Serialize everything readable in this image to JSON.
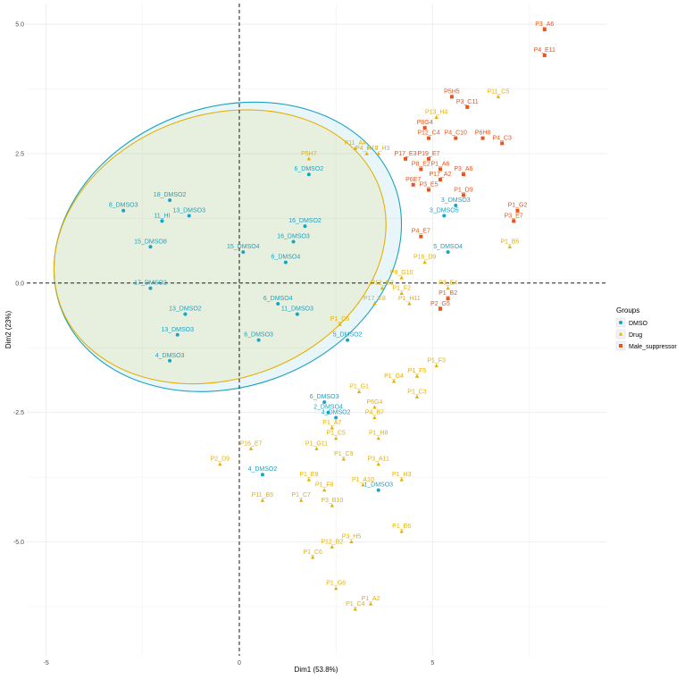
{
  "chart_data": {
    "type": "scatter",
    "xlabel": "Dim1 (53.8%)",
    "ylabel": "Dim2 (23%)",
    "xlim": [
      -5.5,
      9.5
    ],
    "ylim": [
      -7.2,
      5.4
    ],
    "x_ticks": [
      -5,
      0,
      5
    ],
    "y_ticks": [
      -5.0,
      -2.5,
      0.0,
      2.5,
      5.0
    ],
    "x_tick_labels": [
      "-5",
      "0",
      "5"
    ],
    "y_tick_labels": [
      "-5.0",
      "-2.5",
      "0.0",
      "2.5",
      "5.0"
    ],
    "grid": true,
    "legend_title": "Groups",
    "legend_position": "right",
    "groups": [
      {
        "name": "DMSO",
        "color": "#1aa3c2",
        "shape": "circle"
      },
      {
        "name": "Drug",
        "color": "#e6b000",
        "shape": "triangle"
      },
      {
        "name": "Male_suppressor",
        "color": "#e8541a",
        "shape": "square"
      }
    ],
    "ellipses": [
      {
        "group": "DMSO",
        "cx": -0.3,
        "cy": 0.7,
        "rx": 4.6,
        "ry": 2.7,
        "angle_deg": -20
      },
      {
        "group": "Drug",
        "cx": -0.5,
        "cy": 0.7,
        "rx": 4.4,
        "ry": 2.55,
        "angle_deg": -20
      }
    ],
    "series": [
      {
        "name": "Male_suppressor",
        "points": [
          {
            "x": 7.9,
            "y": 4.9,
            "label": "P3_A6"
          },
          {
            "x": 7.9,
            "y": 4.4,
            "label": "P4_E11"
          },
          {
            "x": 5.5,
            "y": 3.6,
            "label": "P5H5"
          },
          {
            "x": 5.9,
            "y": 3.4,
            "label": "P3_C11"
          },
          {
            "x": 4.8,
            "y": 3.0,
            "label": "P8G4"
          },
          {
            "x": 4.9,
            "y": 2.8,
            "label": "P12_C4"
          },
          {
            "x": 5.6,
            "y": 2.8,
            "label": "P4_C10"
          },
          {
            "x": 6.3,
            "y": 2.8,
            "label": "P6H8"
          },
          {
            "x": 6.8,
            "y": 2.7,
            "label": "P4_C3"
          },
          {
            "x": 4.3,
            "y": 2.4,
            "label": "P17_E3"
          },
          {
            "x": 4.9,
            "y": 2.4,
            "label": "P19_E7"
          },
          {
            "x": 5.2,
            "y": 2.2,
            "label": "P1_A6"
          },
          {
            "x": 4.7,
            "y": 2.2,
            "label": "P8_E2"
          },
          {
            "x": 5.8,
            "y": 2.1,
            "label": "P3_A6"
          },
          {
            "x": 5.2,
            "y": 2.0,
            "label": "P17_A2"
          },
          {
            "x": 4.5,
            "y": 1.9,
            "label": "P6E7"
          },
          {
            "x": 4.9,
            "y": 1.8,
            "label": "P3_E5"
          },
          {
            "x": 5.8,
            "y": 1.7,
            "label": "P1_D9"
          },
          {
            "x": 7.2,
            "y": 1.4,
            "label": "P1_G2"
          },
          {
            "x": 7.1,
            "y": 1.2,
            "label": "P3_E7"
          },
          {
            "x": 4.7,
            "y": 0.9,
            "label": "P4_E7"
          },
          {
            "x": 5.4,
            "y": -0.3,
            "label": "P1_B2"
          },
          {
            "x": 5.2,
            "y": -0.5,
            "label": "P2_G5"
          }
        ]
      },
      {
        "name": "DMSO",
        "points": [
          {
            "x": 1.8,
            "y": 2.1,
            "label": "6_DMSO2"
          },
          {
            "x": -1.8,
            "y": 1.6,
            "label": "18_DMSO2"
          },
          {
            "x": -3.0,
            "y": 1.4,
            "label": "8_DMSO3"
          },
          {
            "x": -1.3,
            "y": 1.3,
            "label": "13_DMSO3"
          },
          {
            "x": -2.0,
            "y": 1.2,
            "label": "11_HI"
          },
          {
            "x": 1.7,
            "y": 1.1,
            "label": "16_DMSO2"
          },
          {
            "x": 1.4,
            "y": 0.8,
            "label": "16_DMSO3"
          },
          {
            "x": -2.3,
            "y": 0.7,
            "label": "15_DMSO8"
          },
          {
            "x": 0.1,
            "y": 0.6,
            "label": "15_DMSO4"
          },
          {
            "x": 1.2,
            "y": 0.4,
            "label": "6_DMSO4"
          },
          {
            "x": 5.6,
            "y": 1.5,
            "label": "3_DMSO3"
          },
          {
            "x": 5.3,
            "y": 1.3,
            "label": "3_DMSO5"
          },
          {
            "x": 5.4,
            "y": 0.6,
            "label": "5_DMSO4"
          },
          {
            "x": -2.3,
            "y": -0.1,
            "label": "17_DMSO2"
          },
          {
            "x": 1.0,
            "y": -0.4,
            "label": "6_DMSO4"
          },
          {
            "x": 1.5,
            "y": -0.6,
            "label": "11_DMSO3"
          },
          {
            "x": -1.4,
            "y": -0.6,
            "label": "13_DMSO2"
          },
          {
            "x": -1.6,
            "y": -1.0,
            "label": "13_DMSO3"
          },
          {
            "x": 0.5,
            "y": -1.1,
            "label": "6_DMSO3"
          },
          {
            "x": 2.8,
            "y": -1.1,
            "label": "5_DMSO2"
          },
          {
            "x": -1.8,
            "y": -1.5,
            "label": "4_DMSO3"
          },
          {
            "x": 2.2,
            "y": -2.3,
            "label": "6_DMSO3"
          },
          {
            "x": 2.3,
            "y": -2.5,
            "label": "2_DMSO4"
          },
          {
            "x": 2.5,
            "y": -2.6,
            "label": "4_DMSO2"
          },
          {
            "x": 0.6,
            "y": -3.7,
            "label": "4_DMSO2"
          },
          {
            "x": 3.6,
            "y": -4.0,
            "label": "1_DMSO3"
          }
        ]
      },
      {
        "name": "Drug",
        "points": [
          {
            "x": 6.7,
            "y": 3.6,
            "label": "P11_C5"
          },
          {
            "x": 5.1,
            "y": 3.2,
            "label": "P13_H4"
          },
          {
            "x": 3.0,
            "y": 2.6,
            "label": "P11_A4"
          },
          {
            "x": 3.3,
            "y": 2.5,
            "label": "P4_H10"
          },
          {
            "x": 3.6,
            "y": 2.5,
            "label": "P17_H3"
          },
          {
            "x": 1.8,
            "y": 2.4,
            "label": "P5H7"
          },
          {
            "x": 7.0,
            "y": 0.7,
            "label": "P1_B5"
          },
          {
            "x": 5.4,
            "y": -0.1,
            "label": "P3_E4"
          },
          {
            "x": 4.8,
            "y": 0.4,
            "label": "P16_D9"
          },
          {
            "x": 4.2,
            "y": 0.1,
            "label": "P8_G10"
          },
          {
            "x": 3.7,
            "y": -0.1,
            "label": "P12_G2"
          },
          {
            "x": 4.2,
            "y": -0.2,
            "label": "P1_F2"
          },
          {
            "x": 4.4,
            "y": -0.4,
            "label": "P1_H11"
          },
          {
            "x": 3.5,
            "y": -0.4,
            "label": "P17_E8"
          },
          {
            "x": 2.6,
            "y": -0.8,
            "label": "P1_C6"
          },
          {
            "x": 5.1,
            "y": -1.6,
            "label": "P1_F3"
          },
          {
            "x": 4.6,
            "y": -1.8,
            "label": "P1_F5"
          },
          {
            "x": 4.0,
            "y": -1.9,
            "label": "P1_G4"
          },
          {
            "x": 4.6,
            "y": -2.2,
            "label": "P1_C3"
          },
          {
            "x": 3.1,
            "y": -2.1,
            "label": "P1_G1"
          },
          {
            "x": 3.5,
            "y": -2.4,
            "label": "P6G4"
          },
          {
            "x": 3.5,
            "y": -2.6,
            "label": "P4_B7"
          },
          {
            "x": 2.4,
            "y": -2.8,
            "label": "P1_A7"
          },
          {
            "x": 3.6,
            "y": -3.0,
            "label": "P1_H8"
          },
          {
            "x": 2.5,
            "y": -3.0,
            "label": "P1_C5"
          },
          {
            "x": 2.0,
            "y": -3.2,
            "label": "P1_G11"
          },
          {
            "x": 2.7,
            "y": -3.4,
            "label": "P1_C9"
          },
          {
            "x": 3.6,
            "y": -3.5,
            "label": "P3_A11"
          },
          {
            "x": 4.2,
            "y": -3.8,
            "label": "P1_H3"
          },
          {
            "x": 3.2,
            "y": -3.9,
            "label": "P1_A10"
          },
          {
            "x": 1.8,
            "y": -3.8,
            "label": "P1_E9"
          },
          {
            "x": 2.2,
            "y": -4.0,
            "label": "P1_F8"
          },
          {
            "x": 0.6,
            "y": -4.2,
            "label": "P11_B5"
          },
          {
            "x": 1.6,
            "y": -4.2,
            "label": "P1_C7"
          },
          {
            "x": 2.4,
            "y": -4.3,
            "label": "P3_B10"
          },
          {
            "x": -0.5,
            "y": -3.5,
            "label": "P2_D9"
          },
          {
            "x": 0.3,
            "y": -3.2,
            "label": "P16_E7"
          },
          {
            "x": 4.2,
            "y": -4.8,
            "label": "P1_E6"
          },
          {
            "x": 2.9,
            "y": -5.0,
            "label": "P3_H5"
          },
          {
            "x": 2.4,
            "y": -5.1,
            "label": "P12_B2"
          },
          {
            "x": 1.9,
            "y": -5.3,
            "label": "P1_C6"
          },
          {
            "x": 2.5,
            "y": -5.9,
            "label": "P1_G6"
          },
          {
            "x": 3.4,
            "y": -6.2,
            "label": "P1_A2"
          },
          {
            "x": 3.0,
            "y": -6.3,
            "label": "P1_C4"
          }
        ]
      }
    ]
  }
}
